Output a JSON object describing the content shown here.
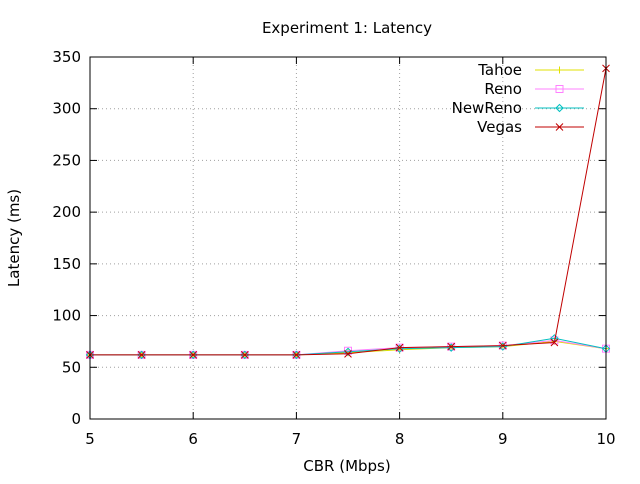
{
  "chart_data": {
    "type": "line",
    "title": "Experiment 1: Latency",
    "xlabel": "CBR (Mbps)",
    "ylabel": "Latency (ms)",
    "xlim": [
      5,
      10
    ],
    "ylim": [
      0,
      350
    ],
    "xticks": [
      5,
      6,
      7,
      8,
      9,
      10
    ],
    "yticks": [
      0,
      50,
      100,
      150,
      200,
      250,
      300,
      350
    ],
    "grid": true,
    "legend_position": "top-right",
    "x": [
      5,
      5.5,
      6,
      6.5,
      7,
      7.5,
      8,
      8.5,
      9,
      9.5,
      10
    ],
    "series": [
      {
        "name": "Tahoe",
        "color": "#e0e000",
        "marker": "plus",
        "values": [
          62,
          62,
          62,
          62,
          62,
          64,
          67,
          69,
          70,
          75,
          68
        ]
      },
      {
        "name": "Reno",
        "color": "#ff80ff",
        "marker": "square",
        "values": [
          62,
          62,
          62,
          62,
          62,
          66,
          69,
          70,
          71,
          76,
          68
        ]
      },
      {
        "name": "NewReno",
        "color": "#00c0c0",
        "marker": "diamond",
        "values": [
          62,
          62,
          62,
          62,
          62,
          65,
          68,
          69,
          70,
          78,
          68
        ]
      },
      {
        "name": "Vegas",
        "color": "#c00000",
        "marker": "cross",
        "values": [
          62,
          62,
          62,
          62,
          62,
          63,
          69,
          70,
          71,
          74,
          339
        ]
      }
    ]
  }
}
